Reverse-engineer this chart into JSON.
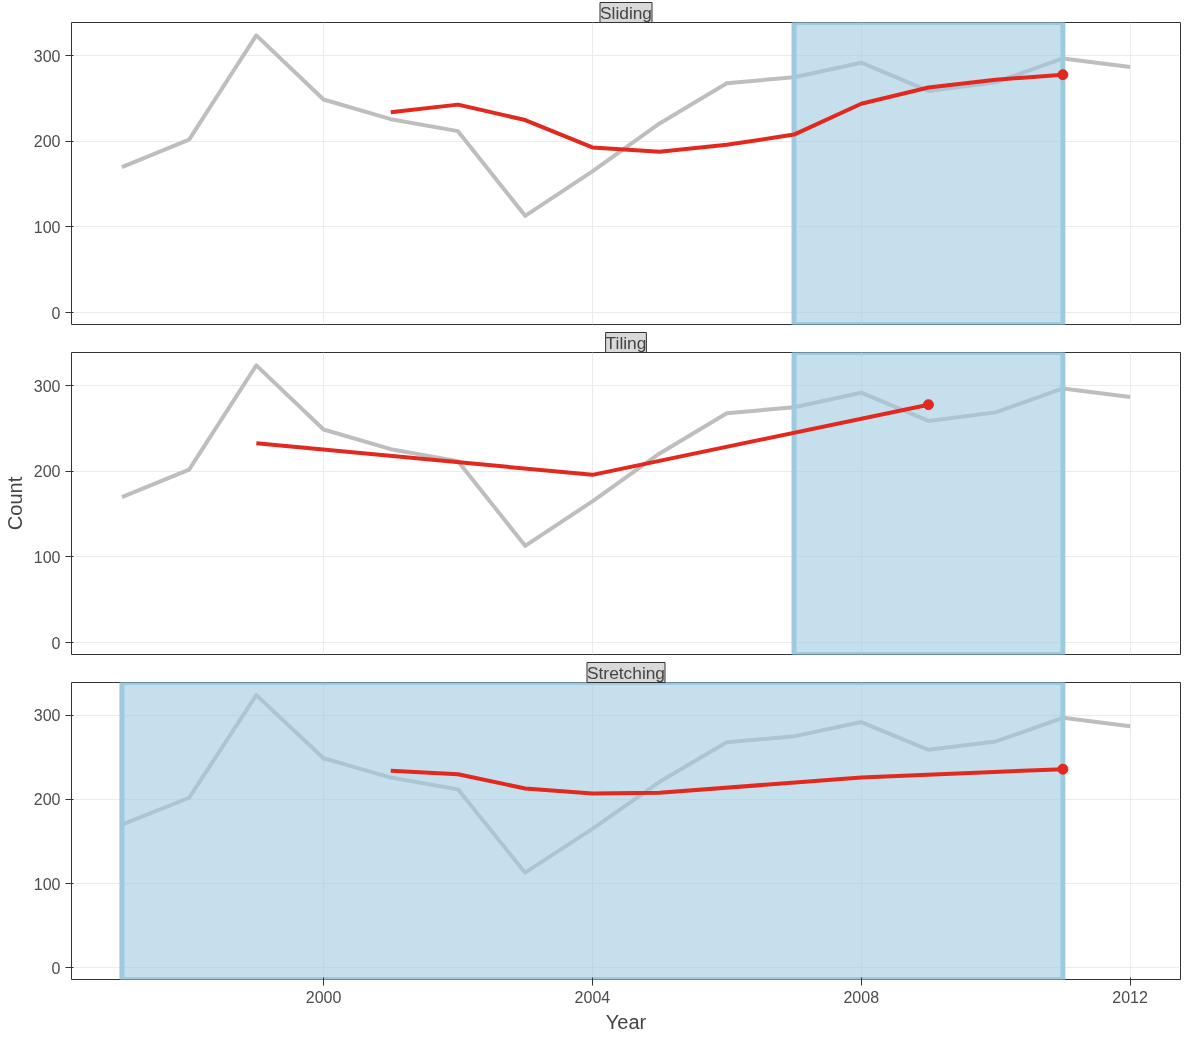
{
  "chart_data": [
    {
      "type": "line",
      "title": "Sliding",
      "x": [
        1997,
        1998,
        1999,
        2000,
        2001,
        2002,
        2003,
        2004,
        2005,
        2006,
        2007,
        2008,
        2009,
        2010,
        2011,
        2012
      ],
      "series": [
        {
          "color": "#bebebe",
          "values": [
            170,
            202,
            324,
            249,
            226,
            212,
            113,
            165,
            221,
            268,
            275,
            292,
            259,
            269,
            297,
            287
          ]
        },
        {
          "color": "#e3281e",
          "x": [
            2001,
            2002,
            2003,
            2004,
            2005,
            2006,
            2007,
            2008,
            2009,
            2010,
            2011
          ],
          "values": [
            234,
            243,
            225,
            193,
            188,
            196,
            208,
            244,
            263,
            272,
            278
          ]
        },
        {
          "type": "scatter",
          "color": "#e3281e",
          "x": [
            2011
          ],
          "values": [
            278
          ]
        }
      ],
      "bands": [
        {
          "axis": "x",
          "from": 2007,
          "to": 2011,
          "color": "#9ecae1"
        }
      ],
      "xlim": [
        1996.25,
        2012.75
      ],
      "ylim": [
        -14,
        339
      ],
      "xticks": [
        2000,
        2004,
        2008,
        2012
      ],
      "yticks": [
        0,
        100,
        200,
        300
      ],
      "grid": true,
      "tick_labels": "y"
    },
    {
      "type": "line",
      "title": "Tiling",
      "ylabel": "Count",
      "x": [
        1997,
        1998,
        1999,
        2000,
        2001,
        2002,
        2003,
        2004,
        2005,
        2006,
        2007,
        2008,
        2009,
        2010,
        2011,
        2012
      ],
      "series": [
        {
          "color": "#bebebe",
          "values": [
            170,
            202,
            324,
            249,
            226,
            212,
            113,
            165,
            221,
            268,
            275,
            292,
            259,
            269,
            297,
            287
          ]
        },
        {
          "color": "#e3281e",
          "x": [
            1999,
            2004,
            2009
          ],
          "values": [
            233,
            196,
            278
          ]
        },
        {
          "type": "scatter",
          "color": "#e3281e",
          "x": [
            2009
          ],
          "values": [
            278
          ]
        }
      ],
      "bands": [
        {
          "axis": "x",
          "from": 2007,
          "to": 2011,
          "color": "#9ecae1"
        }
      ],
      "xlim": [
        1996.25,
        2012.75
      ],
      "ylim": [
        -14,
        339
      ],
      "xticks": [
        2000,
        2004,
        2008,
        2012
      ],
      "yticks": [
        0,
        100,
        200,
        300
      ],
      "grid": true,
      "tick_labels": "y"
    },
    {
      "type": "line",
      "title": "Stretching",
      "xlabel": "Year",
      "x": [
        1997,
        1998,
        1999,
        2000,
        2001,
        2002,
        2003,
        2004,
        2005,
        2006,
        2007,
        2008,
        2009,
        2010,
        2011,
        2012
      ],
      "series": [
        {
          "color": "#bebebe",
          "values": [
            170,
            202,
            324,
            249,
            226,
            212,
            113,
            165,
            221,
            268,
            275,
            292,
            259,
            269,
            297,
            287
          ]
        },
        {
          "color": "#e3281e",
          "x": [
            2001,
            2002,
            2003,
            2004,
            2005,
            2008,
            2011
          ],
          "values": [
            234,
            230,
            213,
            207,
            208,
            226,
            236
          ]
        },
        {
          "type": "scatter",
          "color": "#e3281e",
          "x": [
            2011
          ],
          "values": [
            236
          ]
        }
      ],
      "bands": [
        {
          "axis": "x",
          "from": 1997,
          "to": 2011,
          "color": "#9ecae1"
        }
      ],
      "xlim": [
        1996.25,
        2012.75
      ],
      "ylim": [
        -14,
        339
      ],
      "xticks": [
        2000,
        2004,
        2008,
        2012
      ],
      "yticks": [
        0,
        100,
        200,
        300
      ],
      "grid": true
    }
  ]
}
